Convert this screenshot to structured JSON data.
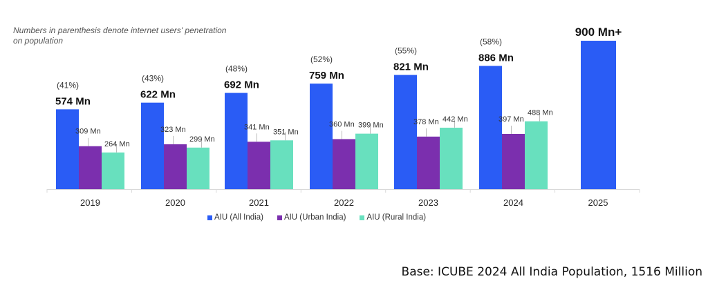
{
  "chart_data": {
    "type": "bar",
    "title": "",
    "note": "Numbers in parenthesis denote internet users' penetration on population",
    "categories": [
      "2019",
      "2020",
      "2021",
      "2022",
      "2023",
      "2024",
      "2025"
    ],
    "series": [
      {
        "name": "AIU (All India)",
        "color": "#2a5cf5",
        "values": [
          574,
          622,
          692,
          759,
          821,
          886,
          900
        ],
        "labels": [
          "574 Mn",
          "622 Mn",
          "692 Mn",
          "759 Mn",
          "821 Mn",
          "886 Mn",
          "900 Mn+"
        ]
      },
      {
        "name": "AIU (Urban India)",
        "color": "#7b2fae",
        "values": [
          309,
          323,
          341,
          360,
          378,
          397,
          null
        ],
        "labels": [
          "309 Mn",
          "323 Mn",
          "341 Mn",
          "360 Mn",
          "378 Mn",
          "397 Mn",
          null
        ]
      },
      {
        "name": "AIU (Rural  India)",
        "color": "#68e0be",
        "values": [
          264,
          299,
          351,
          399,
          442,
          488,
          null
        ],
        "labels": [
          "264 Mn",
          "299 Mn",
          "351 Mn",
          "399 Mn",
          "442 Mn",
          "488 Mn",
          null
        ]
      }
    ],
    "penetration": [
      "(41%)",
      "(43%)",
      "(48%)",
      "(52%)",
      "(55%)",
      "(58%)",
      null
    ],
    "xlabel": "",
    "ylabel": "",
    "ylim": [
      0,
      900
    ],
    "grid": false,
    "legend": "bottom-center"
  },
  "footer": {
    "base_text": "Base: ICUBE 2024 All India Population, 1516 Million"
  }
}
